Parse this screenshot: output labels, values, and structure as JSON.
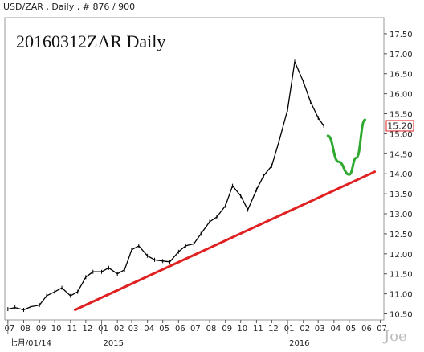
{
  "header": "USD/ZAR , Daily , # 876 / 900",
  "watermark": "Joe",
  "chart_data": {
    "type": "line",
    "title": "20160312ZAR Daily",
    "symbol": "USD/ZAR",
    "interval": "Daily",
    "bar_index": "876",
    "bar_total": "900",
    "last_price": "15.20",
    "ylim": [
      10.35,
      17.9
    ],
    "y_ticks": [
      "10.50",
      "11.00",
      "11.50",
      "12.00",
      "12.50",
      "13.00",
      "13.50",
      "14.00",
      "14.50",
      "15.00",
      "15.50",
      "16.00",
      "16.50",
      "17.00",
      "17.50"
    ],
    "x_ticks": [
      "07",
      "08",
      "09",
      "10",
      "11",
      "12",
      "01",
      "02",
      "03",
      "04",
      "05",
      "06",
      "07",
      "08",
      "09",
      "10",
      "11",
      "12",
      "01",
      "02",
      "03",
      "04",
      "05",
      "06",
      "07"
    ],
    "x_major": [
      {
        "label": "七月/01/14",
        "month": "2014-07"
      },
      {
        "label": "2015",
        "month": "2015-01"
      },
      {
        "label": "2016",
        "month": "2016-01"
      }
    ],
    "grid": false,
    "series": [
      {
        "role": "price",
        "color": "#000000",
        "x": [
          "2014-07-01",
          "2014-07-15",
          "2014-08-01",
          "2014-08-15",
          "2014-09-01",
          "2014-09-15",
          "2014-10-01",
          "2014-10-15",
          "2014-11-01",
          "2014-11-15",
          "2014-12-01",
          "2014-12-15",
          "2015-01-01",
          "2015-01-15",
          "2015-02-01",
          "2015-02-15",
          "2015-03-01",
          "2015-03-15",
          "2015-04-01",
          "2015-04-15",
          "2015-05-01",
          "2015-05-15",
          "2015-06-01",
          "2015-06-15",
          "2015-07-01",
          "2015-07-15",
          "2015-08-01",
          "2015-08-15",
          "2015-09-01",
          "2015-09-15",
          "2015-10-01",
          "2015-10-15",
          "2015-11-01",
          "2015-11-15",
          "2015-12-01",
          "2015-12-15",
          "2016-01-01",
          "2016-01-15",
          "2016-02-01",
          "2016-02-15",
          "2016-03-01",
          "2016-03-12"
        ],
        "y": [
          10.62,
          10.66,
          10.6,
          10.68,
          10.72,
          10.95,
          11.05,
          11.15,
          10.95,
          11.05,
          11.42,
          11.55,
          11.55,
          11.65,
          11.5,
          11.6,
          12.1,
          12.2,
          11.95,
          11.85,
          11.82,
          11.8,
          12.05,
          12.2,
          12.25,
          12.5,
          12.8,
          12.92,
          13.2,
          13.7,
          13.45,
          13.1,
          13.6,
          13.95,
          14.2,
          14.8,
          15.6,
          16.8,
          16.3,
          15.8,
          15.4,
          15.2
        ]
      },
      {
        "role": "trendline",
        "color": "#e02020",
        "x": [
          "2014-11-10",
          "2016-06-20"
        ],
        "y": [
          10.6,
          14.05
        ]
      },
      {
        "role": "projection",
        "color": "#2ea82e",
        "x": [
          "2016-03-20",
          "2016-04-10",
          "2016-05-01",
          "2016-05-15",
          "2016-06-01"
        ],
        "y": [
          14.95,
          14.3,
          13.98,
          14.4,
          15.35
        ]
      }
    ]
  }
}
